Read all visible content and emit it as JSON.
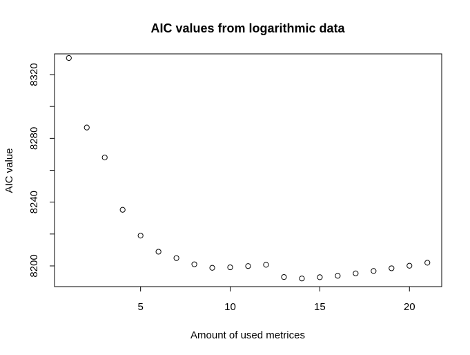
{
  "chart_data": {
    "type": "scatter",
    "title": "AIC values from logarithmic data",
    "xlabel": "Amount of used metrices",
    "ylabel": "AIC value",
    "xlim": [
      0.2,
      21.8
    ],
    "ylim": [
      8187,
      8333
    ],
    "xticks": [
      5,
      10,
      15,
      20
    ],
    "xtick_labels": [
      "5",
      "10",
      "15",
      "20"
    ],
    "yticks": [
      8200,
      8220,
      8240,
      8260,
      8280,
      8300,
      8320
    ],
    "ytick_labels": [
      "8200",
      "",
      "8240",
      "",
      "8280",
      "",
      "8320"
    ],
    "grid": false,
    "marker": "open-circle",
    "x": [
      1,
      2,
      3,
      4,
      5,
      6,
      7,
      8,
      9,
      10,
      11,
      12,
      13,
      14,
      15,
      16,
      17,
      18,
      19,
      20,
      21
    ],
    "y": [
      8330.4,
      8286.8,
      8268.0,
      8235.2,
      8219.0,
      8208.9,
      8204.9,
      8201.0,
      8198.8,
      8199.1,
      8199.9,
      8200.7,
      8193.0,
      8192.1,
      8192.9,
      8193.8,
      8195.3,
      8196.8,
      8198.5,
      8200.1,
      8202.0
    ]
  }
}
